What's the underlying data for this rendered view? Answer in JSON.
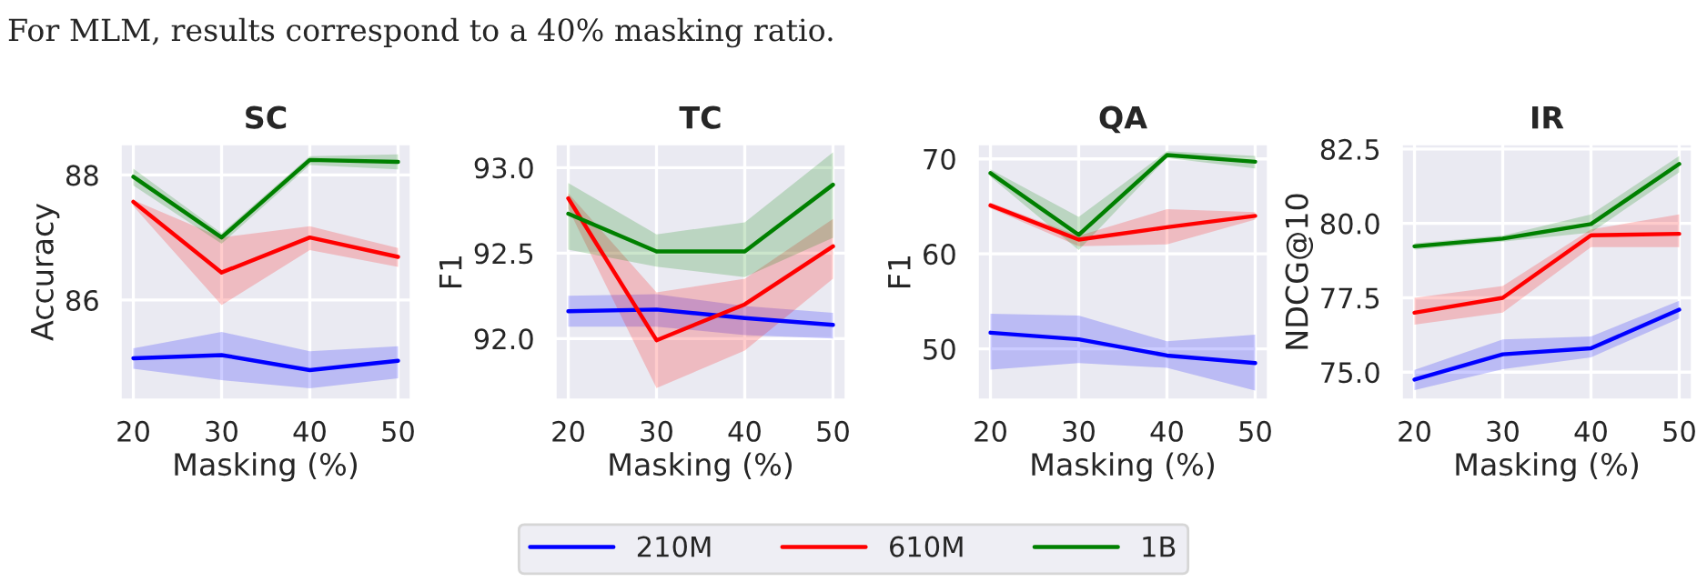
{
  "chart_data": [
    {
      "type": "line",
      "title": "SC",
      "xlabel": "Masking (%)",
      "ylabel": "Accuracy",
      "x": [
        20,
        30,
        40,
        50
      ],
      "xlim": [
        18.5,
        51.5
      ],
      "xticks": [
        20,
        30,
        40,
        50
      ],
      "ylim": [
        84.4,
        88.5
      ],
      "yticks": [
        86,
        88
      ],
      "grid": true,
      "legend": "bottom",
      "annotations": [
        "For MLM, results correspond to a 40% masking ratio."
      ],
      "series": [
        {
          "name": "210M",
          "color": "#0000ff",
          "values": [
            85.07,
            85.12,
            84.88,
            85.03
          ],
          "lower": [
            84.9,
            84.72,
            84.59,
            84.75
          ],
          "upper": [
            85.23,
            85.49,
            85.18,
            85.26
          ]
        },
        {
          "name": "610M",
          "color": "#ff0000",
          "values": [
            87.57,
            86.44,
            87.0,
            86.69
          ],
          "lower": [
            87.5,
            85.92,
            86.8,
            86.53
          ],
          "upper": [
            87.6,
            87.0,
            87.18,
            86.83
          ]
        },
        {
          "name": "1B",
          "color": "#008000",
          "values": [
            87.97,
            87.0,
            88.24,
            88.21
          ],
          "lower": [
            87.83,
            86.9,
            88.16,
            88.09
          ],
          "upper": [
            88.1,
            87.07,
            88.3,
            88.33
          ]
        }
      ]
    },
    {
      "type": "line",
      "title": "TC",
      "xlabel": "Masking (%)",
      "ylabel": "F1",
      "x": [
        20,
        30,
        40,
        50
      ],
      "xlim": [
        18.5,
        51.5
      ],
      "xticks": [
        20,
        30,
        40,
        50
      ],
      "ylim": [
        91.64,
        93.14
      ],
      "yticks": [
        {
          "value": 92,
          "label": "92.0"
        },
        92.5,
        {
          "value": 93,
          "label": "93.0"
        }
      ],
      "grid": true,
      "series": [
        {
          "color": "#0000ff",
          "values": [
            92.16,
            92.17,
            92.12,
            92.08
          ],
          "lower": [
            92.07,
            92.07,
            92.02,
            92.0
          ],
          "upper": [
            92.25,
            92.26,
            92.19,
            92.15
          ]
        },
        {
          "color": "#ff0000",
          "values": [
            92.82,
            91.99,
            92.2,
            92.54
          ],
          "lower": [
            92.76,
            91.71,
            91.93,
            92.35
          ],
          "upper": [
            92.85,
            92.27,
            92.35,
            92.7
          ]
        },
        {
          "color": "#008000",
          "values": [
            92.73,
            92.51,
            92.51,
            92.9
          ],
          "lower": [
            92.52,
            92.42,
            92.36,
            92.59
          ],
          "upper": [
            92.91,
            92.61,
            92.68,
            93.09
          ]
        }
      ]
    },
    {
      "type": "line",
      "title": "QA",
      "xlabel": "Masking (%)",
      "ylabel": "F1",
      "x": [
        20,
        30,
        40,
        50
      ],
      "xlim": [
        18.5,
        51.5
      ],
      "xticks": [
        20,
        30,
        40,
        50
      ],
      "ylim": [
        44.6,
        71.6
      ],
      "yticks": [
        50,
        60,
        70
      ],
      "grid": true,
      "series": [
        {
          "color": "#0000ff",
          "values": [
            51.7,
            51.0,
            49.3,
            48.5
          ],
          "lower": [
            47.8,
            48.5,
            48.0,
            45.6
          ],
          "upper": [
            53.7,
            53.5,
            50.8,
            51.5
          ]
        },
        {
          "color": "#ff0000",
          "values": [
            65.1,
            61.5,
            62.8,
            64.0
          ],
          "lower": [
            64.8,
            60.8,
            61.0,
            63.6
          ],
          "upper": [
            65.4,
            61.9,
            64.7,
            64.4
          ]
        },
        {
          "color": "#008000",
          "values": [
            68.5,
            62.0,
            70.4,
            69.7
          ],
          "lower": [
            68.1,
            60.4,
            70.1,
            69.0
          ],
          "upper": [
            68.9,
            63.9,
            70.8,
            70.3
          ]
        }
      ]
    },
    {
      "type": "line",
      "title": "IR",
      "xlabel": "Masking (%)",
      "ylabel": "NDCG@10",
      "x": [
        20,
        30,
        40,
        50
      ],
      "xlim": [
        18.5,
        51.5
      ],
      "xticks": [
        20,
        30,
        40,
        50
      ],
      "ylim": [
        74.06,
        82.68
      ],
      "yticks": [
        {
          "value": 75,
          "label": "75.0"
        },
        77.5,
        {
          "value": 80,
          "label": "80.0"
        },
        82.5
      ],
      "grid": true,
      "series": [
        {
          "color": "#0000ff",
          "values": [
            74.75,
            75.6,
            75.8,
            77.1
          ],
          "lower": [
            74.4,
            75.1,
            75.5,
            76.8
          ],
          "upper": [
            75.08,
            76.1,
            76.2,
            77.4
          ]
        },
        {
          "color": "#ff0000",
          "values": [
            77.0,
            77.5,
            79.6,
            79.65
          ],
          "lower": [
            76.6,
            77.0,
            79.2,
            79.2
          ],
          "upper": [
            77.5,
            77.9,
            79.8,
            80.3
          ]
        },
        {
          "color": "#008000",
          "values": [
            79.23,
            79.49,
            79.98,
            82.0
          ],
          "lower": [
            79.12,
            79.39,
            79.69,
            81.72
          ],
          "upper": [
            79.33,
            79.59,
            80.3,
            82.27
          ]
        }
      ]
    }
  ]
}
